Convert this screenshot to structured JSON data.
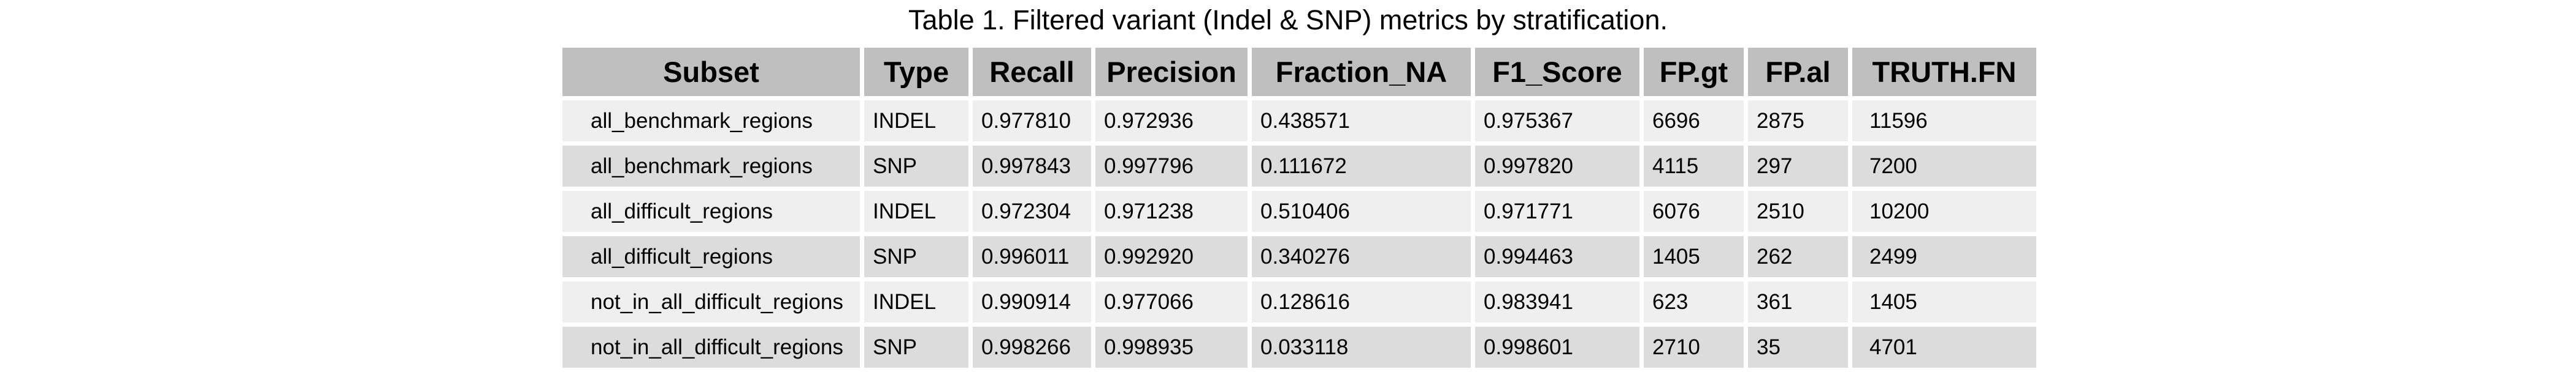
{
  "title": "Table 1. Filtered variant (Indel & SNP) metrics by stratification.",
  "colors": {
    "header_bg": "#bfbfbf",
    "row_light": "#efefef",
    "row_dark": "#dcdcdc"
  },
  "table": {
    "columns": [
      "Subset",
      "Type",
      "Recall",
      "Precision",
      "Fraction_NA",
      "F1_Score",
      "FP.gt",
      "FP.al",
      "TRUTH.FN"
    ],
    "rows": [
      [
        "all_benchmark_regions",
        "INDEL",
        "0.977810",
        "0.972936",
        "0.438571",
        "0.975367",
        "6696",
        "2875",
        "11596"
      ],
      [
        "all_benchmark_regions",
        "SNP",
        "0.997843",
        "0.997796",
        "0.111672",
        "0.997820",
        "4115",
        "297",
        "7200"
      ],
      [
        "all_difficult_regions",
        "INDEL",
        "0.972304",
        "0.971238",
        "0.510406",
        "0.971771",
        "6076",
        "2510",
        "10200"
      ],
      [
        "all_difficult_regions",
        "SNP",
        "0.996011",
        "0.992920",
        "0.340276",
        "0.994463",
        "1405",
        "262",
        "2499"
      ],
      [
        "not_in_all_difficult_regions",
        "INDEL",
        "0.990914",
        "0.977066",
        "0.128616",
        "0.983941",
        "623",
        "361",
        "1405"
      ],
      [
        "not_in_all_difficult_regions",
        "SNP",
        "0.998266",
        "0.998935",
        "0.033118",
        "0.998601",
        "2710",
        "35",
        "4701"
      ]
    ]
  }
}
